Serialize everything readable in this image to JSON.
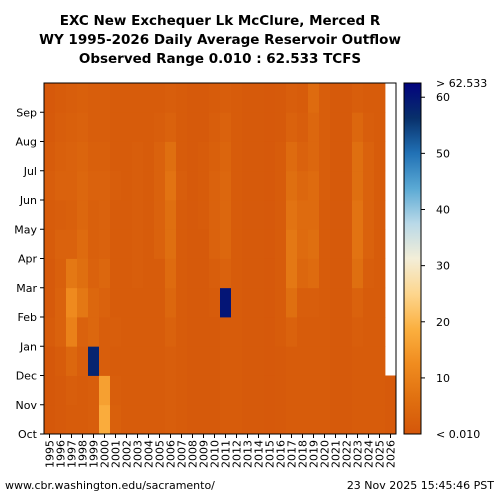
{
  "chart_data": {
    "type": "heatmap",
    "title": [
      "EXC New Exchequer Lk McClure, Merced R",
      "WY 1995-2026 Daily Average Reservoir Outflow",
      "Observed Range 0.010 : 62.533 TCFS"
    ],
    "years": [
      "1995",
      "1996",
      "1997",
      "1998",
      "1999",
      "2000",
      "2001",
      "2002",
      "2003",
      "2004",
      "2005",
      "2006",
      "2007",
      "2008",
      "2009",
      "2010",
      "2011",
      "2012",
      "2013",
      "2014",
      "2015",
      "2016",
      "2017",
      "2018",
      "2019",
      "2020",
      "2021",
      "2022",
      "2023",
      "2024",
      "2025",
      "2026"
    ],
    "months": [
      "Oct",
      "Nov",
      "Dec",
      "Jan",
      "Feb",
      "Mar",
      "Apr",
      "May",
      "Jun",
      "Jul",
      "Aug",
      "Sep"
    ],
    "colorbar": {
      "min": 0.01,
      "max": 62.533,
      "ticks": [
        10,
        20,
        30,
        40,
        50,
        60
      ],
      "min_label": "< 0.010",
      "max_label": "> 62.533",
      "colors": [
        "#d4560a",
        "#e07010",
        "#f08c1f",
        "#fbb040",
        "#fdd68e",
        "#f3eed8",
        "#b9d9e8",
        "#5aa9d4",
        "#2171b5",
        "#08306b",
        "#02037e"
      ]
    },
    "monthly_outflow_tcfs": [
      [
        0.5,
        0.5,
        0.5,
        1.5,
        1.0,
        1.0,
        1.5,
        1.5,
        2.0,
        1.5,
        1.0,
        0.8
      ],
      [
        1.0,
        1.0,
        1.5,
        3.0,
        3.0,
        2.5,
        3.0,
        2.0,
        3.0,
        2.5,
        2.0,
        1.5
      ],
      [
        1.5,
        2.0,
        4.0,
        10.0,
        12.0,
        8.0,
        3.0,
        2.5,
        3.0,
        3.0,
        2.5,
        2.0
      ],
      [
        1.5,
        1.5,
        2.0,
        3.0,
        8.0,
        6.0,
        5.0,
        4.0,
        4.0,
        3.5,
        3.0,
        2.5
      ],
      [
        2.0,
        2.0,
        58.0,
        4.0,
        4.0,
        3.0,
        2.5,
        2.5,
        3.0,
        2.5,
        2.0,
        2.0
      ],
      [
        18.0,
        16.0,
        2.0,
        2.0,
        3.0,
        4.0,
        3.0,
        3.0,
        3.0,
        2.5,
        2.0,
        2.0
      ],
      [
        2.5,
        2.0,
        1.5,
        2.0,
        1.5,
        1.5,
        1.5,
        1.5,
        2.0,
        1.5,
        1.5,
        1.5
      ],
      [
        1.5,
        1.5,
        1.5,
        1.5,
        1.5,
        1.5,
        1.5,
        1.5,
        1.5,
        1.5,
        1.5,
        1.5
      ],
      [
        1.5,
        1.5,
        1.5,
        1.5,
        1.5,
        2.0,
        2.0,
        2.0,
        2.0,
        2.0,
        1.5,
        1.5
      ],
      [
        1.5,
        1.5,
        1.5,
        1.5,
        1.5,
        1.5,
        1.5,
        1.5,
        1.5,
        1.5,
        1.5,
        1.5
      ],
      [
        1.5,
        1.5,
        1.5,
        1.5,
        1.5,
        1.5,
        3.0,
        3.0,
        3.0,
        3.0,
        2.0,
        1.5
      ],
      [
        2.0,
        2.0,
        2.0,
        3.0,
        4.0,
        5.0,
        6.0,
        6.0,
        7.0,
        6.0,
        3.0,
        2.0
      ],
      [
        1.5,
        1.5,
        1.5,
        1.5,
        1.5,
        1.5,
        1.5,
        1.5,
        2.0,
        1.5,
        1.5,
        1.5
      ],
      [
        1.0,
        1.0,
        1.0,
        1.0,
        1.0,
        1.0,
        1.0,
        1.0,
        1.0,
        1.0,
        1.0,
        1.0
      ],
      [
        1.0,
        1.0,
        1.0,
        1.0,
        1.0,
        1.0,
        1.0,
        1.5,
        1.5,
        1.5,
        1.0,
        1.0
      ],
      [
        1.0,
        1.0,
        1.0,
        1.0,
        1.5,
        2.0,
        3.0,
        3.0,
        3.0,
        2.5,
        2.0,
        1.5
      ],
      [
        1.5,
        1.5,
        1.5,
        1.5,
        60.0,
        3.0,
        4.0,
        4.0,
        4.0,
        3.5,
        3.0,
        2.0
      ],
      [
        1.5,
        1.5,
        1.5,
        1.5,
        1.5,
        1.5,
        1.5,
        1.5,
        1.5,
        1.5,
        1.5,
        1.5
      ],
      [
        1.0,
        1.0,
        1.0,
        1.0,
        1.0,
        1.0,
        1.0,
        1.0,
        1.0,
        1.0,
        1.0,
        1.0
      ],
      [
        1.0,
        1.0,
        1.0,
        1.0,
        1.0,
        1.0,
        1.0,
        1.0,
        1.0,
        1.0,
        1.0,
        1.0
      ],
      [
        0.8,
        0.8,
        0.8,
        0.8,
        0.8,
        0.8,
        0.8,
        0.8,
        0.8,
        0.8,
        0.8,
        0.8
      ],
      [
        1.0,
        1.0,
        1.0,
        1.5,
        1.5,
        1.5,
        1.5,
        1.5,
        1.5,
        1.5,
        1.0,
        1.0
      ],
      [
        1.5,
        1.5,
        1.5,
        3.0,
        6.0,
        8.0,
        8.0,
        7.0,
        6.0,
        5.0,
        3.0,
        2.0
      ],
      [
        1.5,
        1.5,
        1.5,
        1.5,
        2.0,
        4.0,
        5.0,
        5.0,
        4.0,
        3.0,
        2.0,
        1.5
      ],
      [
        1.5,
        1.5,
        1.5,
        1.5,
        2.0,
        5.0,
        6.0,
        5.0,
        5.0,
        4.0,
        4.0,
        5.0
      ],
      [
        1.5,
        1.5,
        1.5,
        1.5,
        1.5,
        1.5,
        1.5,
        1.5,
        2.0,
        2.0,
        2.0,
        2.0
      ],
      [
        1.0,
        1.0,
        1.0,
        1.0,
        1.0,
        1.0,
        1.0,
        1.0,
        1.0,
        1.0,
        1.0,
        1.0
      ],
      [
        1.0,
        1.0,
        1.0,
        1.0,
        1.0,
        1.0,
        1.0,
        1.0,
        1.0,
        1.0,
        1.0,
        1.0
      ],
      [
        1.5,
        1.5,
        1.5,
        2.0,
        3.0,
        6.0,
        7.0,
        7.0,
        6.0,
        6.0,
        4.0,
        2.0
      ],
      [
        1.5,
        1.5,
        1.5,
        1.5,
        1.5,
        2.0,
        3.0,
        3.0,
        3.0,
        3.0,
        2.0,
        1.5
      ],
      [
        1.5,
        1.5,
        1.5,
        1.5,
        1.5,
        1.5,
        1.5,
        1.5,
        1.5,
        1.5,
        1.5,
        1.5
      ],
      [
        1.0,
        1.0,
        null,
        null,
        null,
        null,
        null,
        null,
        null,
        null,
        null,
        null
      ]
    ],
    "footer_left": "www.cbr.washington.edu/sacramento/",
    "footer_right": "23 Nov 2025 15:45:46 PST"
  }
}
